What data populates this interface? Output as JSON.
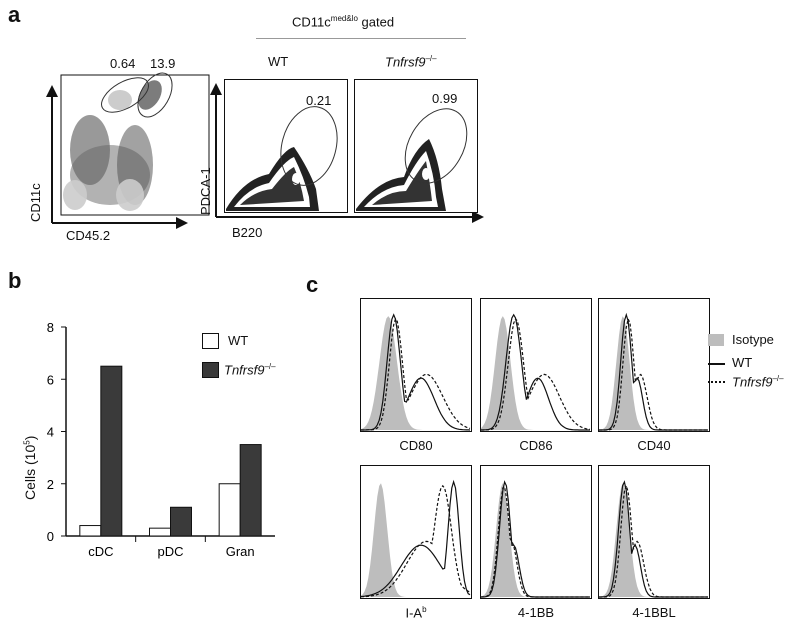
{
  "panel_a": {
    "letter": "a",
    "plot1": {
      "gate1": "0.64",
      "gate2": "13.9",
      "ylabel": "CD11c",
      "xlabel": "CD45.2"
    },
    "gated_title": "CD11c",
    "gated_sup": "med&lo",
    "gated_suffix": " gated",
    "wt_label": "WT",
    "ko_label": "Tnfrsf9",
    "ko_sup": "–/–",
    "wt_gate": "0.21",
    "ko_gate": "0.99",
    "ylabel2": "PDCA-1",
    "xlabel2": "B220"
  },
  "panel_b": {
    "letter": "b",
    "legend": {
      "wt": "WT",
      "ko": "Tnfrsf9",
      "ko_sup": "–/–"
    },
    "ylabel": "Cells (10",
    "ylabel_sup": "5",
    "ylabel_end": ")"
  },
  "chart_data": {
    "type": "bar",
    "categories": [
      "cDC",
      "pDC",
      "Gran"
    ],
    "series": [
      {
        "name": "WT",
        "values": [
          0.4,
          0.3,
          2.0
        ],
        "color": "#ffffff"
      },
      {
        "name": "Tnfrsf9–/–",
        "values": [
          6.5,
          1.1,
          3.5
        ],
        "color": "#3a3a3a"
      }
    ],
    "ylim": [
      0,
      8
    ],
    "yticks": [
      "0",
      "2",
      "4",
      "6",
      "8"
    ],
    "ylabel": "Cells (10^5)"
  },
  "panel_c": {
    "letter": "c",
    "legend": {
      "isotype": "Isotype",
      "wt": "WT",
      "ko": "Tnfrsf9",
      "ko_sup": "–/–"
    },
    "markers": [
      {
        "label": "CD80",
        "sup": ""
      },
      {
        "label": "CD86",
        "sup": ""
      },
      {
        "label": "CD40",
        "sup": ""
      },
      {
        "label": "I-A",
        "sup": "b"
      },
      {
        "label": "4-1BB",
        "sup": ""
      },
      {
        "label": "4-1BBL",
        "sup": ""
      }
    ]
  }
}
